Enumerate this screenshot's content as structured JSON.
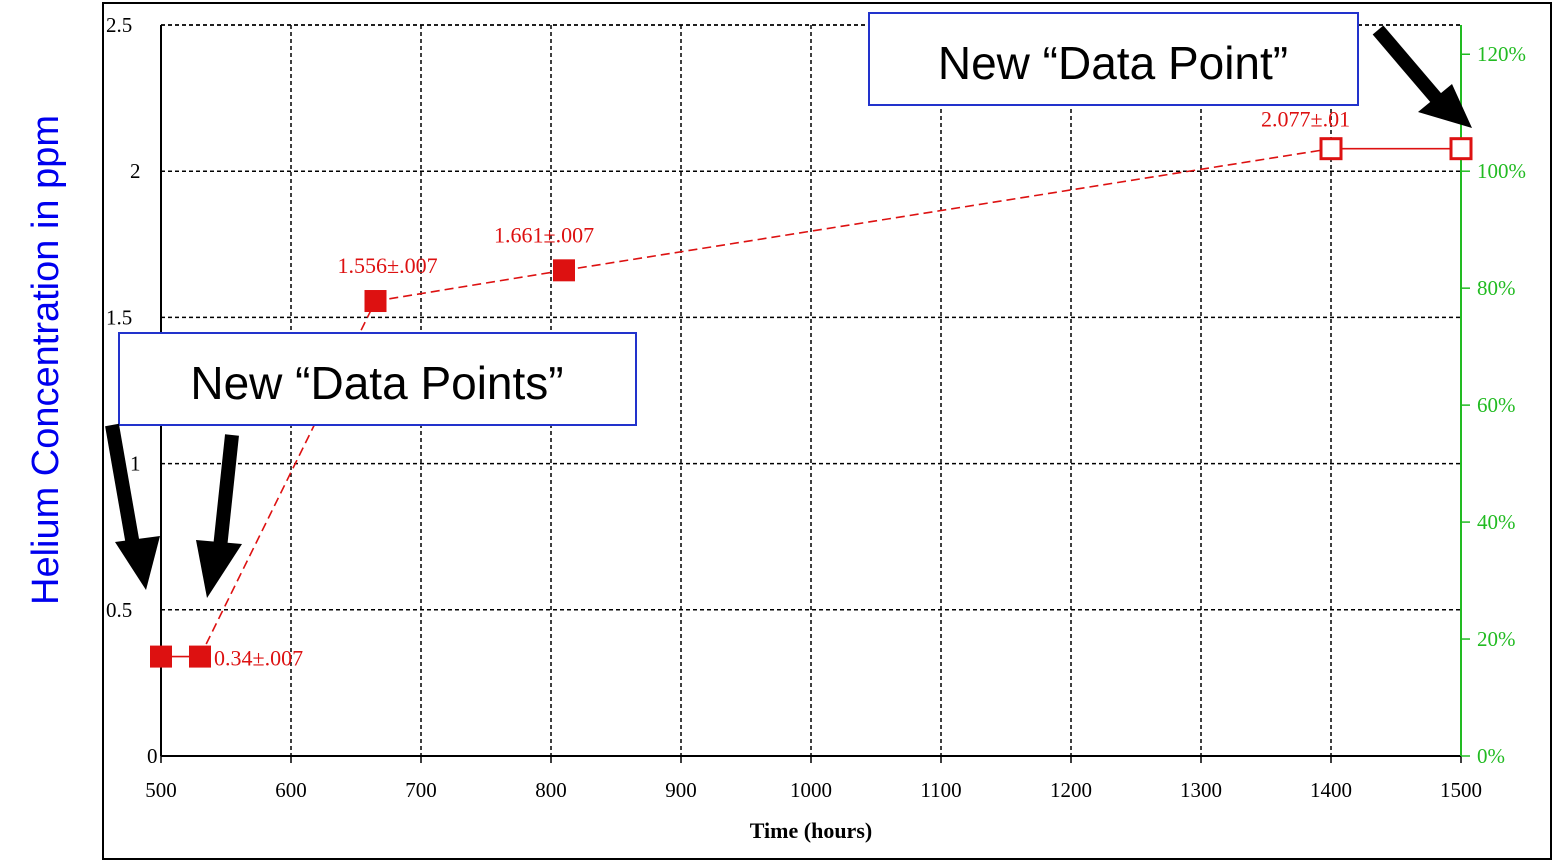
{
  "chart_data": {
    "type": "line",
    "xlabel": "Time (hours)",
    "ylabel": "Helium Concentration in ppm",
    "xlim": [
      500,
      1500
    ],
    "ylim": [
      0,
      2.5
    ],
    "xticks": [
      500,
      600,
      700,
      800,
      900,
      1000,
      1100,
      1200,
      1300,
      1400,
      1500
    ],
    "yticks": [
      0,
      0.5,
      1,
      1.5,
      2,
      2.5
    ],
    "ytick_labels": [
      "0",
      "0.5",
      "1",
      "1.5",
      "2",
      "2.5"
    ],
    "y2ticks": [
      0,
      20,
      40,
      60,
      80,
      100,
      120
    ],
    "y2tick_labels": [
      "0%",
      "20%",
      "40%",
      "60%",
      "80%",
      "100%",
      "120%"
    ],
    "y2lim": [
      0,
      125
    ],
    "grid": true,
    "colors": {
      "series": "#dd1111",
      "secondary_axis": "#22bb22",
      "callout_text": "#000000",
      "ylabel": "#0000ee",
      "callout_border": "#2233cc"
    },
    "series": [
      {
        "points": [
          {
            "x": 500,
            "y": 0.34,
            "marker": "filled-square"
          },
          {
            "x": 530,
            "y": 0.34,
            "marker": "filled-square"
          },
          {
            "x": 665,
            "y": 1.556,
            "marker": "filled-square"
          },
          {
            "x": 810,
            "y": 1.661,
            "marker": "filled-square"
          },
          {
            "x": 1400,
            "y": 2.077,
            "marker": "open-square"
          },
          {
            "x": 1500,
            "y": 2.077,
            "marker": "open-square"
          }
        ]
      }
    ],
    "data_labels": [
      {
        "text": "0.34±.007",
        "x": 530,
        "y": 0.34
      },
      {
        "text": "1.556±.007",
        "x": 665,
        "y": 1.556
      },
      {
        "text": "1.661±.007",
        "x": 810,
        "y": 1.661
      },
      {
        "text": "2.077±.01",
        "x": 1400,
        "y": 2.077
      }
    ],
    "annotations": [
      {
        "text": "New “Data Point”"
      },
      {
        "text": "New “Data Points”"
      }
    ]
  }
}
